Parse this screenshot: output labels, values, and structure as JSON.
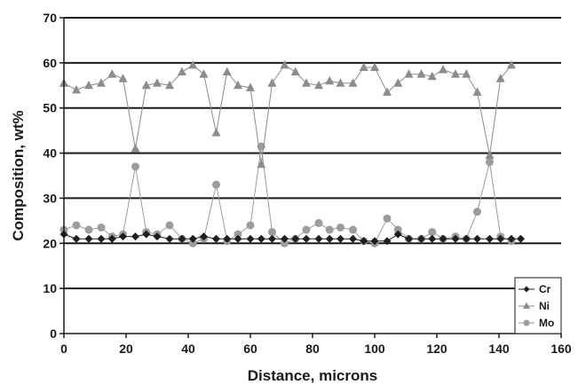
{
  "chart_data": {
    "type": "line",
    "xlabel": "Distance, microns",
    "ylabel": "Composition, wt%",
    "xlim": [
      0,
      160
    ],
    "ylim": [
      0,
      70
    ],
    "xticks": [
      0,
      20,
      40,
      60,
      80,
      100,
      120,
      140,
      160
    ],
    "yticks": [
      0,
      10,
      20,
      30,
      40,
      50,
      60,
      70
    ],
    "grid": "horizontal major lines",
    "legend_position": "bottom-right",
    "series": [
      {
        "name": "Cr",
        "marker": "diamond",
        "color": "#1e1e1e",
        "points": [
          [
            0,
            22
          ],
          [
            4,
            21
          ],
          [
            8,
            21
          ],
          [
            12,
            21
          ],
          [
            15.5,
            21
          ],
          [
            19,
            21.5
          ],
          [
            23,
            21.5
          ],
          [
            26.5,
            22
          ],
          [
            30,
            21.5
          ],
          [
            34,
            21
          ],
          [
            38,
            21
          ],
          [
            41.5,
            21
          ],
          [
            45,
            21.5
          ],
          [
            49,
            21
          ],
          [
            52.5,
            21
          ],
          [
            56,
            21
          ],
          [
            60,
            21
          ],
          [
            63.5,
            21
          ],
          [
            67,
            21
          ],
          [
            71,
            21
          ],
          [
            74.5,
            21
          ],
          [
            78,
            21
          ],
          [
            82,
            21
          ],
          [
            85.5,
            21
          ],
          [
            89,
            21
          ],
          [
            93,
            21
          ],
          [
            96.5,
            20.5
          ],
          [
            100,
            20.5
          ],
          [
            104,
            20.5
          ],
          [
            107.5,
            22
          ],
          [
            111,
            21
          ],
          [
            115,
            21
          ],
          [
            118.5,
            21
          ],
          [
            122,
            21
          ],
          [
            126,
            21
          ],
          [
            129.5,
            21
          ],
          [
            133,
            21
          ],
          [
            137,
            21
          ],
          [
            140.5,
            21
          ],
          [
            144,
            21
          ],
          [
            147,
            21
          ]
        ]
      },
      {
        "name": "Ni",
        "marker": "triangle",
        "color": "#8c8c8c",
        "points": [
          [
            0,
            55.5
          ],
          [
            4,
            54
          ],
          [
            8,
            55
          ],
          [
            12,
            55.5
          ],
          [
            15.5,
            57.5
          ],
          [
            19,
            56.5
          ],
          [
            23,
            41
          ],
          [
            26.5,
            55
          ],
          [
            30,
            55.5
          ],
          [
            34,
            55
          ],
          [
            38,
            58
          ],
          [
            41.5,
            59.5
          ],
          [
            45,
            57.5
          ],
          [
            49,
            44.5
          ],
          [
            52.5,
            58
          ],
          [
            56,
            55
          ],
          [
            60,
            54.5
          ],
          [
            63.5,
            37.5
          ],
          [
            67,
            55.5
          ],
          [
            71,
            59.5
          ],
          [
            74.5,
            58
          ],
          [
            78,
            55.5
          ],
          [
            82,
            55
          ],
          [
            85.5,
            56
          ],
          [
            89,
            55.5
          ],
          [
            93,
            55.5
          ],
          [
            96.5,
            59
          ],
          [
            100,
            59
          ],
          [
            104,
            53.5
          ],
          [
            107.5,
            55.5
          ],
          [
            111,
            57.5
          ],
          [
            115,
            57.5
          ],
          [
            118.5,
            57
          ],
          [
            122,
            58.5
          ],
          [
            126,
            57.5
          ],
          [
            129.5,
            57.5
          ],
          [
            133,
            53.5
          ],
          [
            137,
            39.5
          ],
          [
            140.5,
            56.5
          ],
          [
            144,
            59.5
          ]
        ]
      },
      {
        "name": "Mo",
        "marker": "circle",
        "color": "#9c9c9c",
        "points": [
          [
            0,
            23
          ],
          [
            4,
            24
          ],
          [
            8,
            23
          ],
          [
            12,
            23.5
          ],
          [
            15.5,
            21.5
          ],
          [
            19,
            22
          ],
          [
            23,
            37
          ],
          [
            26.5,
            22.5
          ],
          [
            30,
            22
          ],
          [
            34,
            24
          ],
          [
            38,
            21
          ],
          [
            41.5,
            20
          ],
          [
            45,
            21
          ],
          [
            49,
            33
          ],
          [
            52.5,
            20.5
          ],
          [
            56,
            22
          ],
          [
            60,
            24
          ],
          [
            63.5,
            41.5
          ],
          [
            67,
            22.5
          ],
          [
            71,
            20
          ],
          [
            74.5,
            21
          ],
          [
            78,
            23
          ],
          [
            82,
            24.5
          ],
          [
            85.5,
            23
          ],
          [
            89,
            23.5
          ],
          [
            93,
            23
          ],
          [
            96.5,
            20.5
          ],
          [
            100,
            20
          ],
          [
            104,
            25.5
          ],
          [
            107.5,
            23
          ],
          [
            111,
            21
          ],
          [
            115,
            21
          ],
          [
            118.5,
            22.5
          ],
          [
            122,
            21
          ],
          [
            126,
            21.5
          ],
          [
            129.5,
            21
          ],
          [
            133,
            27
          ],
          [
            137,
            38
          ],
          [
            140.5,
            21.5
          ],
          [
            144,
            20.5
          ]
        ]
      }
    ]
  }
}
